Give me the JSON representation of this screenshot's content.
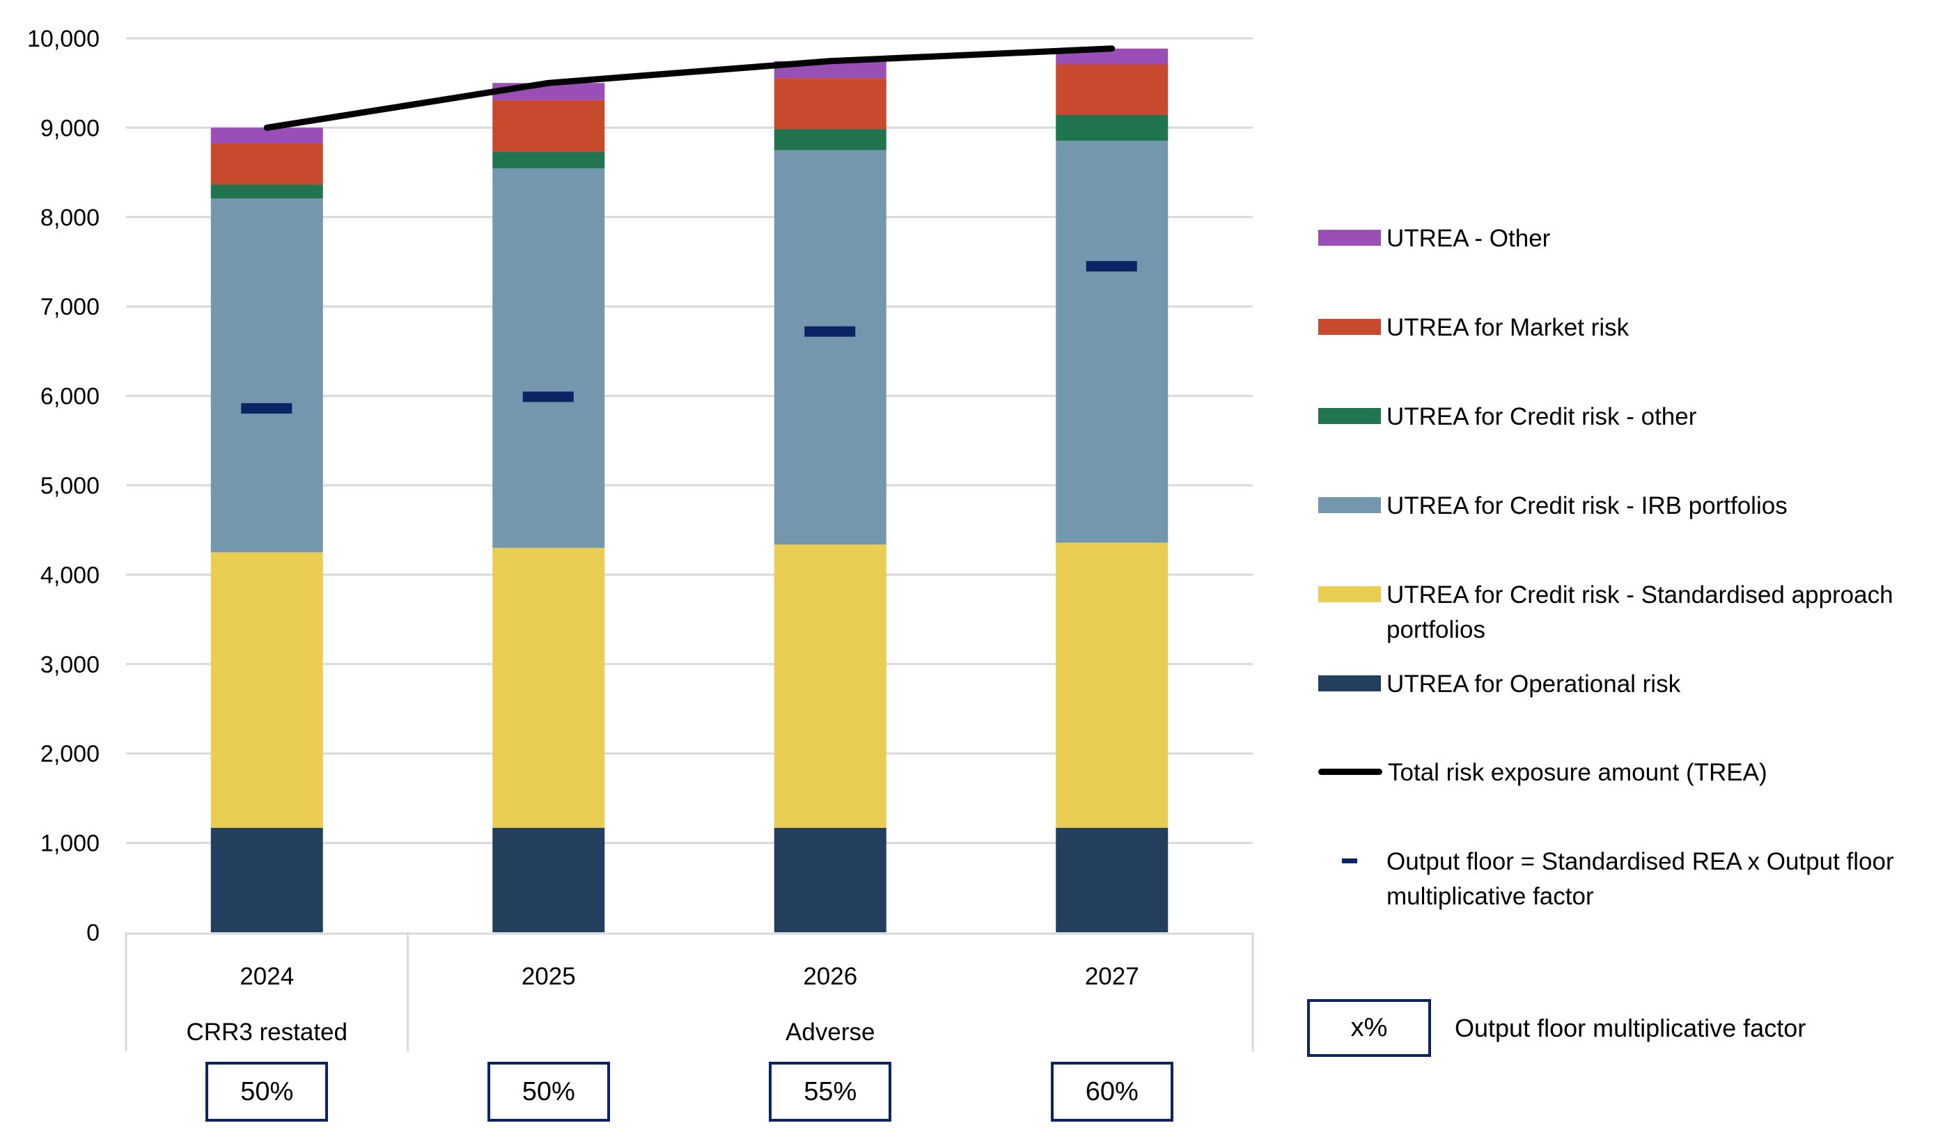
{
  "chart_data": {
    "type": "bar",
    "stacked": true,
    "title": "",
    "xlabel": "",
    "ylabel": "",
    "ylim": [
      0,
      10000
    ],
    "yticks": [
      0,
      1000,
      2000,
      3000,
      4000,
      5000,
      6000,
      7000,
      8000,
      9000,
      10000
    ],
    "ytick_labels": [
      "0",
      "1,000",
      "2,000",
      "3,000",
      "4,000",
      "5,000",
      "6,000",
      "7,000",
      "8,000",
      "9,000",
      "10,000"
    ],
    "grid": true,
    "categories": [
      "2024",
      "2025",
      "2026",
      "2027"
    ],
    "category_groups": [
      {
        "label": "CRR3 restated",
        "span": [
          "2024"
        ]
      },
      {
        "label": "Adverse",
        "span": [
          "2025",
          "2026",
          "2027"
        ]
      }
    ],
    "series": [
      {
        "name": "UTREA for Operational risk",
        "color": "#243f5e",
        "values": [
          1168,
          1168,
          1168,
          1168
        ]
      },
      {
        "name": "UTREA for Credit risk - Standardised approach portfolios",
        "color": "#eacd53",
        "values": [
          3082,
          3132,
          3169,
          3190
        ]
      },
      {
        "name": "UTREA for Credit risk - IRB portfolios",
        "color": "#7597ad",
        "values": [
          3959,
          4245,
          4413,
          4496
        ]
      },
      {
        "name": "UTREA for Credit risk - other",
        "color": "#20744f",
        "values": [
          155,
          185,
          234,
          289
        ]
      },
      {
        "name": "UTREA for Market risk",
        "color": "#c7492e",
        "values": [
          460,
          578,
          571,
          565
        ]
      },
      {
        "name": "UTREA - Other",
        "color": "#9a4fb7",
        "values": [
          176,
          192,
          190,
          177
        ]
      }
    ],
    "line_series": {
      "name": "Total risk exposure amount (TREA)",
      "color": "#000000",
      "values": [
        9000,
        9500,
        9745,
        9885
      ]
    },
    "marker_series": {
      "name": "Output floor = Standardised REA x Output floor multiplicative factor",
      "color": "#0b2463",
      "values": [
        5860,
        5990,
        6720,
        7450
      ]
    },
    "output_floor_factors": [
      "50%",
      "50%",
      "55%",
      "60%"
    ],
    "legend_placement": "right",
    "legend_order": [
      "UTREA - Other",
      "UTREA for Market risk",
      "UTREA for Credit risk - other",
      "UTREA for Credit risk - IRB portfolios",
      "UTREA for Credit risk - Standardised approach portfolios",
      "UTREA for Operational risk",
      "Total risk exposure amount (TREA)",
      "Output floor = Standardised REA x Output floor multiplicative factor"
    ]
  },
  "legend": {
    "other": "UTREA - Other",
    "market": "UTREA for Market risk",
    "credit_other": "UTREA for Credit risk - other",
    "irb": "UTREA for Credit risk - IRB portfolios",
    "sa": "UTREA for Credit risk - Standardised approach portfolios",
    "op": "UTREA for Operational risk",
    "trea": "Total risk exposure amount (TREA)",
    "floor": "Output floor = Standardised REA x Output floor multiplicative factor"
  },
  "factor_key": {
    "box_label": "x%",
    "caption": "Output floor multiplicative factor"
  },
  "colors": {
    "grid": "#d9d9d9",
    "box_border": "#0b2463"
  }
}
